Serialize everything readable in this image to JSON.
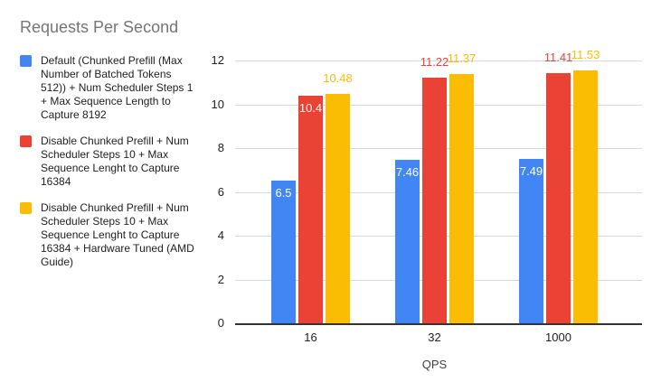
{
  "chart_data": {
    "type": "bar",
    "title": "Requests Per Second",
    "title_color": "#757575",
    "categories": [
      "16",
      "32",
      "1000"
    ],
    "series": [
      {
        "name": "Default (Chunked Prefill (Max Number of Batched Tokens 512)) + Num Scheduler Steps 1 + Max Sequence Length to Capture 8192",
        "color": "#4285F4",
        "values": [
          6.5,
          7.46,
          7.49
        ],
        "labels": [
          "6.5",
          "7.46",
          "7.49"
        ],
        "label_placement": [
          "inside",
          "inside",
          "inside"
        ]
      },
      {
        "name": "Disable Chunked Prefill + Num Scheduler Steps 10 + Max Sequence Lenght to Capture 16384",
        "color": "#EA4335",
        "values": [
          10.4,
          11.22,
          11.41
        ],
        "labels": [
          "10.4",
          "11.22",
          "11.41"
        ],
        "label_placement": [
          "inside",
          "above",
          "above"
        ]
      },
      {
        "name": "Disable Chunked Prefill + Num Scheduler Steps 10 + Max Sequence Lenght to Capture 16384 + Hardware Tuned (AMD Guide)",
        "color": "#FBBC04",
        "values": [
          10.48,
          11.37,
          11.53
        ],
        "labels": [
          "10.48",
          "11.37",
          "11.53"
        ],
        "label_placement": [
          "above",
          "above",
          "above"
        ]
      }
    ],
    "xlabel": "QPS",
    "ylabel": "",
    "ylim": [
      0,
      12
    ],
    "yticks": [
      0,
      2,
      4,
      6,
      8,
      10,
      12
    ],
    "grid": true,
    "legend_position": "left",
    "inside_label_color": "#ffffff",
    "gridline_color": "#d9d9d9",
    "axis_line_color": "#333333",
    "tick_label_color": "#212121",
    "legend_text_color": "#212121",
    "background_color": "#ffffff"
  }
}
